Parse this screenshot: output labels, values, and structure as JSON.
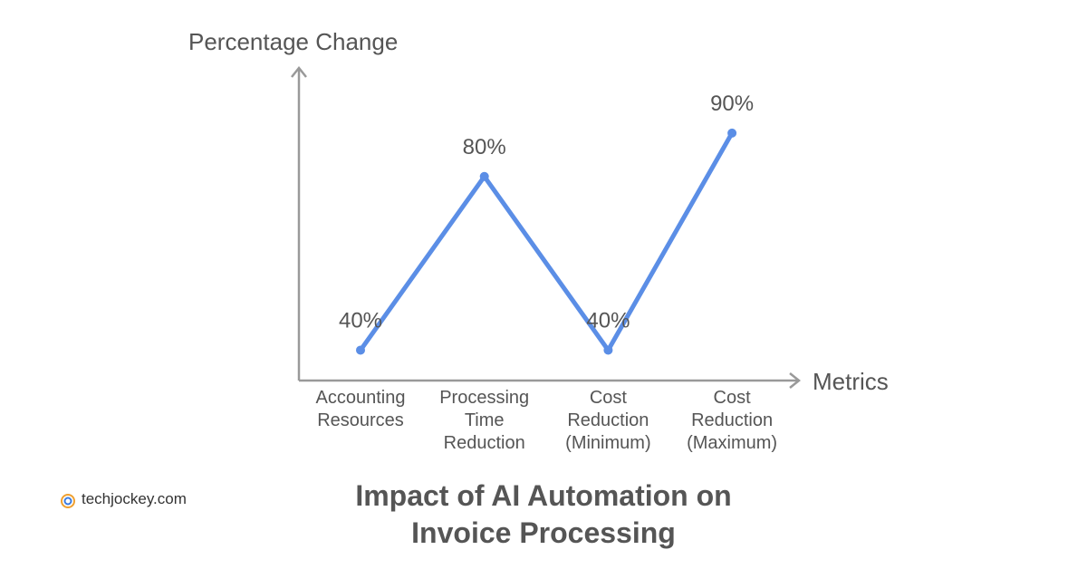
{
  "chart_data": {
    "type": "line",
    "title": "Impact of AI Automation on\nInvoice Processing",
    "y_axis_label": "Percentage Change",
    "x_axis_label": "Metrics",
    "categories": [
      "Accounting\nResources",
      "Processing\nTime\nReduction",
      "Cost\nReduction\n(Minimum)",
      "Cost\nReduction\n(Maximum)"
    ],
    "values": [
      40,
      80,
      40,
      90
    ],
    "value_labels": [
      "40%",
      "80%",
      "40%",
      "90%"
    ],
    "color": "#5b8ee6",
    "ylim": [
      33,
      105
    ]
  },
  "watermark": "techjockey.com"
}
